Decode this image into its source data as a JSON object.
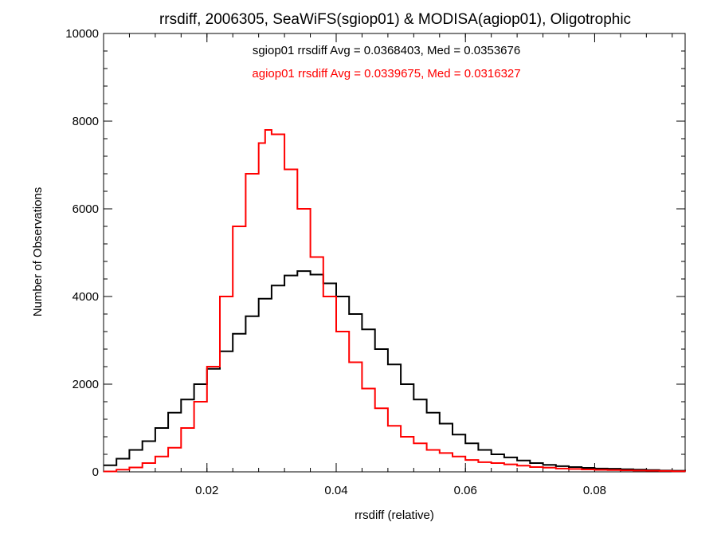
{
  "chart_data": {
    "type": "line",
    "title": "rrsdiff, 2006305, SeaWiFS(sgiop01) & MODISA(agiop01), Oligotrophic",
    "xlabel": "rrsdiff (relative)",
    "ylabel": "Number of Observations",
    "xlim": [
      0.004,
      0.094
    ],
    "ylim": [
      0,
      10000
    ],
    "xticks": [
      "0.02",
      "0.04",
      "0.06",
      "0.08"
    ],
    "xtick_values": [
      0.02,
      0.04,
      0.06,
      0.08
    ],
    "yticks": [
      "0",
      "2000",
      "4000",
      "6000",
      "8000",
      "10000"
    ],
    "ytick_values": [
      0,
      2000,
      4000,
      6000,
      8000,
      10000
    ],
    "grid": false,
    "step": true,
    "annotations": [
      {
        "text": "sgiop01 rrsdiff Avg = 0.0368403, Med = 0.0353676",
        "color": "#000000"
      },
      {
        "text": "agiop01 rrsdiff Avg = 0.0339675, Med = 0.0316327",
        "color": "#ff0000"
      }
    ],
    "series": [
      {
        "color": "#000000",
        "x": [
          0.004,
          0.006,
          0.008,
          0.01,
          0.012,
          0.014,
          0.016,
          0.018,
          0.02,
          0.022,
          0.024,
          0.026,
          0.028,
          0.03,
          0.032,
          0.034,
          0.036,
          0.038,
          0.04,
          0.042,
          0.044,
          0.046,
          0.048,
          0.05,
          0.052,
          0.054,
          0.056,
          0.058,
          0.06,
          0.062,
          0.064,
          0.066,
          0.068,
          0.07,
          0.072,
          0.074,
          0.076,
          0.078,
          0.08,
          0.082,
          0.084,
          0.086,
          0.088,
          0.09,
          0.092,
          0.094
        ],
        "y": [
          150,
          300,
          500,
          700,
          1000,
          1350,
          1650,
          2000,
          2350,
          2750,
          3150,
          3550,
          3950,
          4250,
          4480,
          4580,
          4500,
          4300,
          4000,
          3600,
          3250,
          2800,
          2450,
          2000,
          1650,
          1350,
          1100,
          850,
          650,
          500,
          400,
          330,
          260,
          200,
          160,
          130,
          110,
          90,
          75,
          70,
          60,
          50,
          40,
          30,
          25,
          20
        ]
      },
      {
        "color": "#ff0000",
        "x": [
          0.004,
          0.006,
          0.008,
          0.01,
          0.012,
          0.014,
          0.016,
          0.018,
          0.02,
          0.022,
          0.024,
          0.026,
          0.028,
          0.029,
          0.03,
          0.032,
          0.034,
          0.036,
          0.038,
          0.04,
          0.042,
          0.044,
          0.046,
          0.048,
          0.05,
          0.052,
          0.054,
          0.056,
          0.058,
          0.06,
          0.062,
          0.064,
          0.066,
          0.068,
          0.07,
          0.072,
          0.074,
          0.076,
          0.078,
          0.08,
          0.082,
          0.084,
          0.086,
          0.088,
          0.09,
          0.092,
          0.094
        ],
        "y": [
          10,
          50,
          100,
          200,
          350,
          550,
          1000,
          1600,
          2400,
          4000,
          5600,
          6800,
          7500,
          7800,
          7700,
          6900,
          6000,
          4900,
          4000,
          3200,
          2500,
          1900,
          1450,
          1050,
          800,
          650,
          500,
          430,
          350,
          270,
          220,
          200,
          170,
          140,
          110,
          95,
          75,
          65,
          55,
          45,
          40,
          35,
          30,
          25,
          20,
          15,
          10
        ]
      }
    ]
  }
}
